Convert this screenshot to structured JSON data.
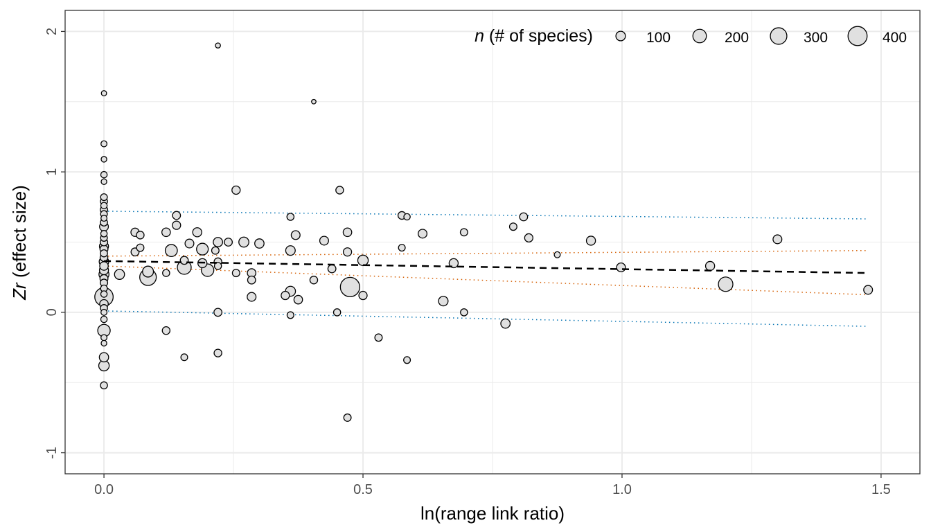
{
  "chart_data": {
    "type": "scatter",
    "xlabel": "ln(range link ratio)",
    "ylabel": {
      "italic": "Zr",
      "rest": " (effect size)"
    },
    "xlim": [
      -0.075,
      1.575
    ],
    "ylim": [
      -1.15,
      2.15
    ],
    "x_ticks": [
      0.0,
      0.5,
      1.0,
      1.5
    ],
    "x_tick_labels": [
      "0.0",
      "0.5",
      "1.0",
      "1.5"
    ],
    "y_ticks": [
      -1,
      0,
      1,
      2
    ],
    "y_tick_labels": [
      "-1",
      "0",
      "1",
      "2"
    ],
    "grid": true,
    "colors": {
      "point_fill": "#e0e0e0",
      "point_stroke": "#000000",
      "grid": "#ebebeb",
      "fit_line": "#000000",
      "confidence_band": "#d55e00",
      "prediction_band": "#0072b2"
    },
    "legend": {
      "title_italic": "n",
      "title_rest": " (# of species)",
      "position": "top-right",
      "items": [
        {
          "label": "100",
          "n": 100
        },
        {
          "label": "200",
          "n": 200
        },
        {
          "label": "300",
          "n": 300
        },
        {
          "label": "400",
          "n": 400
        }
      ]
    },
    "fit_line": {
      "x": [
        0.0,
        1.475
      ],
      "y": [
        0.365,
        0.28
      ]
    },
    "confidence_band": {
      "x": [
        0.0,
        1.475
      ],
      "upper": [
        0.4,
        0.44
      ],
      "lower": [
        0.33,
        0.125
      ]
    },
    "prediction_band": {
      "x": [
        0.0,
        1.475
      ],
      "upper": [
        0.72,
        0.665
      ],
      "lower": [
        0.01,
        -0.1
      ]
    },
    "points": [
      {
        "x": 0.0,
        "y": 1.56,
        "n": 30
      },
      {
        "x": 0.0,
        "y": 1.2,
        "n": 40
      },
      {
        "x": 0.0,
        "y": 1.09,
        "n": 35
      },
      {
        "x": 0.0,
        "y": 0.98,
        "n": 45
      },
      {
        "x": 0.0,
        "y": 0.93,
        "n": 35
      },
      {
        "x": 0.0,
        "y": 0.82,
        "n": 50
      },
      {
        "x": 0.0,
        "y": 0.79,
        "n": 55
      },
      {
        "x": 0.0,
        "y": 0.76,
        "n": 45
      },
      {
        "x": 0.0,
        "y": 0.73,
        "n": 60
      },
      {
        "x": 0.0,
        "y": 0.7,
        "n": 50
      },
      {
        "x": 0.0,
        "y": 0.67,
        "n": 40
      },
      {
        "x": 0.0,
        "y": 0.64,
        "n": 55
      },
      {
        "x": 0.0,
        "y": 0.61,
        "n": 85
      },
      {
        "x": 0.0,
        "y": 0.56,
        "n": 45
      },
      {
        "x": 0.0,
        "y": 0.53,
        "n": 50
      },
      {
        "x": 0.0,
        "y": 0.5,
        "n": 60
      },
      {
        "x": 0.0,
        "y": 0.47,
        "n": 90
      },
      {
        "x": 0.0,
        "y": 0.45,
        "n": 70
      },
      {
        "x": 0.0,
        "y": 0.42,
        "n": 55
      },
      {
        "x": 0.0,
        "y": 0.39,
        "n": 65
      },
      {
        "x": 0.0,
        "y": 0.36,
        "n": 100
      },
      {
        "x": 0.0,
        "y": 0.33,
        "n": 80
      },
      {
        "x": 0.0,
        "y": 0.3,
        "n": 90
      },
      {
        "x": 0.0,
        "y": 0.27,
        "n": 110
      },
      {
        "x": 0.0,
        "y": 0.24,
        "n": 70
      },
      {
        "x": 0.0,
        "y": 0.21,
        "n": 60
      },
      {
        "x": 0.0,
        "y": 0.17,
        "n": 50
      },
      {
        "x": 0.0,
        "y": 0.13,
        "n": 45
      },
      {
        "x": 0.0,
        "y": 0.11,
        "n": 370
      },
      {
        "x": 0.0,
        "y": 0.06,
        "n": 80
      },
      {
        "x": 0.0,
        "y": 0.03,
        "n": 55
      },
      {
        "x": 0.0,
        "y": 0.0,
        "n": 40
      },
      {
        "x": 0.0,
        "y": -0.05,
        "n": 45
      },
      {
        "x": 0.0,
        "y": -0.13,
        "n": 170
      },
      {
        "x": 0.0,
        "y": -0.18,
        "n": 40
      },
      {
        "x": 0.0,
        "y": -0.22,
        "n": 35
      },
      {
        "x": 0.0,
        "y": -0.32,
        "n": 95
      },
      {
        "x": 0.0,
        "y": -0.38,
        "n": 120
      },
      {
        "x": 0.0,
        "y": -0.52,
        "n": 55
      },
      {
        "x": 0.03,
        "y": 0.27,
        "n": 110
      },
      {
        "x": 0.06,
        "y": 0.57,
        "n": 75
      },
      {
        "x": 0.06,
        "y": 0.43,
        "n": 70
      },
      {
        "x": 0.07,
        "y": 0.55,
        "n": 65
      },
      {
        "x": 0.07,
        "y": 0.46,
        "n": 60
      },
      {
        "x": 0.085,
        "y": 0.29,
        "n": 130
      },
      {
        "x": 0.085,
        "y": 0.25,
        "n": 300
      },
      {
        "x": 0.12,
        "y": 0.57,
        "n": 80
      },
      {
        "x": 0.12,
        "y": 0.28,
        "n": 55
      },
      {
        "x": 0.12,
        "y": -0.13,
        "n": 65
      },
      {
        "x": 0.13,
        "y": 0.44,
        "n": 160
      },
      {
        "x": 0.14,
        "y": 0.69,
        "n": 70
      },
      {
        "x": 0.14,
        "y": 0.62,
        "n": 75
      },
      {
        "x": 0.155,
        "y": 0.37,
        "n": 70
      },
      {
        "x": 0.155,
        "y": 0.32,
        "n": 210
      },
      {
        "x": 0.155,
        "y": -0.32,
        "n": 50
      },
      {
        "x": 0.165,
        "y": 0.49,
        "n": 85
      },
      {
        "x": 0.18,
        "y": 0.57,
        "n": 90
      },
      {
        "x": 0.19,
        "y": 0.45,
        "n": 150
      },
      {
        "x": 0.19,
        "y": 0.35,
        "n": 90
      },
      {
        "x": 0.2,
        "y": 0.3,
        "n": 170
      },
      {
        "x": 0.215,
        "y": 0.44,
        "n": 60
      },
      {
        "x": 0.22,
        "y": 1.9,
        "n": 28
      },
      {
        "x": 0.22,
        "y": 0.5,
        "n": 95
      },
      {
        "x": 0.22,
        "y": 0.36,
        "n": 65
      },
      {
        "x": 0.22,
        "y": 0.33,
        "n": 55
      },
      {
        "x": 0.22,
        "y": 0.0,
        "n": 70
      },
      {
        "x": 0.22,
        "y": -0.29,
        "n": 65
      },
      {
        "x": 0.24,
        "y": 0.5,
        "n": 70
      },
      {
        "x": 0.255,
        "y": 0.87,
        "n": 75
      },
      {
        "x": 0.255,
        "y": 0.28,
        "n": 60
      },
      {
        "x": 0.27,
        "y": 0.5,
        "n": 110
      },
      {
        "x": 0.285,
        "y": 0.28,
        "n": 80
      },
      {
        "x": 0.285,
        "y": 0.23,
        "n": 70
      },
      {
        "x": 0.285,
        "y": 0.11,
        "n": 85
      },
      {
        "x": 0.3,
        "y": 0.49,
        "n": 95
      },
      {
        "x": 0.35,
        "y": 0.12,
        "n": 75
      },
      {
        "x": 0.36,
        "y": 0.68,
        "n": 55
      },
      {
        "x": 0.36,
        "y": 0.44,
        "n": 100
      },
      {
        "x": 0.36,
        "y": 0.15,
        "n": 110
      },
      {
        "x": 0.36,
        "y": -0.02,
        "n": 50
      },
      {
        "x": 0.37,
        "y": 0.55,
        "n": 85
      },
      {
        "x": 0.375,
        "y": 0.09,
        "n": 80
      },
      {
        "x": 0.405,
        "y": 1.5,
        "n": 22
      },
      {
        "x": 0.405,
        "y": 0.23,
        "n": 65
      },
      {
        "x": 0.425,
        "y": 0.51,
        "n": 85
      },
      {
        "x": 0.44,
        "y": 0.31,
        "n": 70
      },
      {
        "x": 0.45,
        "y": 0.0,
        "n": 55
      },
      {
        "x": 0.455,
        "y": 0.87,
        "n": 65
      },
      {
        "x": 0.47,
        "y": 0.57,
        "n": 80
      },
      {
        "x": 0.47,
        "y": 0.43,
        "n": 75
      },
      {
        "x": 0.475,
        "y": 0.18,
        "n": 410
      },
      {
        "x": 0.47,
        "y": -0.75,
        "n": 60
      },
      {
        "x": 0.5,
        "y": 0.37,
        "n": 120
      },
      {
        "x": 0.5,
        "y": 0.12,
        "n": 75
      },
      {
        "x": 0.53,
        "y": -0.18,
        "n": 60
      },
      {
        "x": 0.575,
        "y": 0.69,
        "n": 65
      },
      {
        "x": 0.575,
        "y": 0.46,
        "n": 50
      },
      {
        "x": 0.585,
        "y": 0.68,
        "n": 45
      },
      {
        "x": 0.585,
        "y": -0.34,
        "n": 50
      },
      {
        "x": 0.615,
        "y": 0.56,
        "n": 85
      },
      {
        "x": 0.655,
        "y": 0.08,
        "n": 100
      },
      {
        "x": 0.675,
        "y": 0.35,
        "n": 90
      },
      {
        "x": 0.695,
        "y": 0.57,
        "n": 60
      },
      {
        "x": 0.695,
        "y": 0.0,
        "n": 55
      },
      {
        "x": 0.775,
        "y": -0.08,
        "n": 95
      },
      {
        "x": 0.79,
        "y": 0.61,
        "n": 60
      },
      {
        "x": 0.81,
        "y": 0.68,
        "n": 70
      },
      {
        "x": 0.82,
        "y": 0.53,
        "n": 75
      },
      {
        "x": 0.875,
        "y": 0.41,
        "n": 40
      },
      {
        "x": 0.94,
        "y": 0.51,
        "n": 90
      },
      {
        "x": 0.998,
        "y": 0.32,
        "n": 85
      },
      {
        "x": 1.17,
        "y": 0.33,
        "n": 90
      },
      {
        "x": 1.2,
        "y": 0.2,
        "n": 230
      },
      {
        "x": 1.3,
        "y": 0.52,
        "n": 85
      },
      {
        "x": 1.475,
        "y": 0.16,
        "n": 85
      }
    ]
  }
}
